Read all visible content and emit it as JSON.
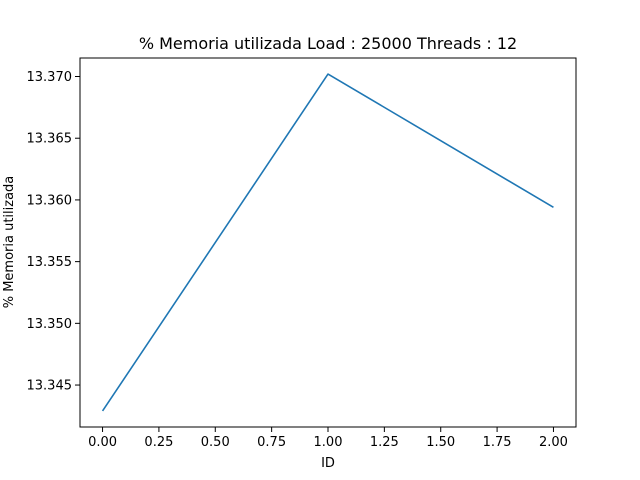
{
  "chart_data": {
    "type": "line",
    "title": "% Memoria utilizada Load : 25000 Threads : 12",
    "xlabel": "ID",
    "ylabel": "% Memoria utilizada",
    "xlim": [
      -0.1,
      2.1
    ],
    "ylim": [
      13.3416,
      13.3715
    ],
    "xticks": [
      0.0,
      0.25,
      0.5,
      0.75,
      1.0,
      1.25,
      1.5,
      1.75,
      2.0
    ],
    "xtick_labels": [
      "0.00",
      "0.25",
      "0.50",
      "0.75",
      "1.00",
      "1.25",
      "1.50",
      "1.75",
      "2.00"
    ],
    "yticks": [
      13.345,
      13.35,
      13.355,
      13.36,
      13.365,
      13.37
    ],
    "ytick_labels": [
      "13.345",
      "13.350",
      "13.355",
      "13.360",
      "13.365",
      "13.370"
    ],
    "grid": false,
    "series": [
      {
        "color": "#1f77b4",
        "x": [
          0,
          1,
          2
        ],
        "y": [
          13.3429,
          13.3702,
          13.3594
        ]
      }
    ]
  }
}
